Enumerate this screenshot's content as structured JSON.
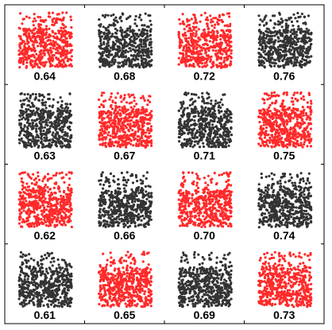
{
  "chart_data": {
    "type": "scatter",
    "layout": {
      "rows": 4,
      "cols": 4
    },
    "grid": false,
    "title": "",
    "xlabel": "",
    "ylabel": "",
    "colors": {
      "red": "#ff2a2a",
      "black": "#333333"
    },
    "panels": [
      {
        "label": "0.64",
        "color": "red",
        "row": 0,
        "col": 0,
        "density": "high"
      },
      {
        "label": "0.68",
        "color": "black",
        "row": 0,
        "col": 1,
        "density": "high"
      },
      {
        "label": "0.72",
        "color": "red",
        "row": 0,
        "col": 2,
        "density": "high"
      },
      {
        "label": "0.76",
        "color": "black",
        "row": 0,
        "col": 3,
        "density": "high"
      },
      {
        "label": "0.63",
        "color": "black",
        "row": 1,
        "col": 0,
        "density": "high"
      },
      {
        "label": "0.67",
        "color": "red",
        "row": 1,
        "col": 1,
        "density": "high"
      },
      {
        "label": "0.71",
        "color": "black",
        "row": 1,
        "col": 2,
        "density": "high"
      },
      {
        "label": "0.75",
        "color": "red",
        "row": 1,
        "col": 3,
        "density": "high"
      },
      {
        "label": "0.62",
        "color": "red",
        "row": 2,
        "col": 0,
        "density": "high"
      },
      {
        "label": "0.66",
        "color": "black",
        "row": 2,
        "col": 1,
        "density": "high"
      },
      {
        "label": "0.70",
        "color": "red",
        "row": 2,
        "col": 2,
        "density": "high"
      },
      {
        "label": "0.74",
        "color": "black",
        "row": 2,
        "col": 3,
        "density": "high"
      },
      {
        "label": "0.61",
        "color": "black",
        "row": 3,
        "col": 0,
        "density": "high"
      },
      {
        "label": "0.65",
        "color": "red",
        "row": 3,
        "col": 1,
        "density": "high"
      },
      {
        "label": "0.69",
        "color": "black",
        "row": 3,
        "col": 2,
        "density": "high"
      },
      {
        "label": "0.73",
        "color": "red",
        "row": 3,
        "col": 3,
        "density": "high"
      }
    ]
  }
}
